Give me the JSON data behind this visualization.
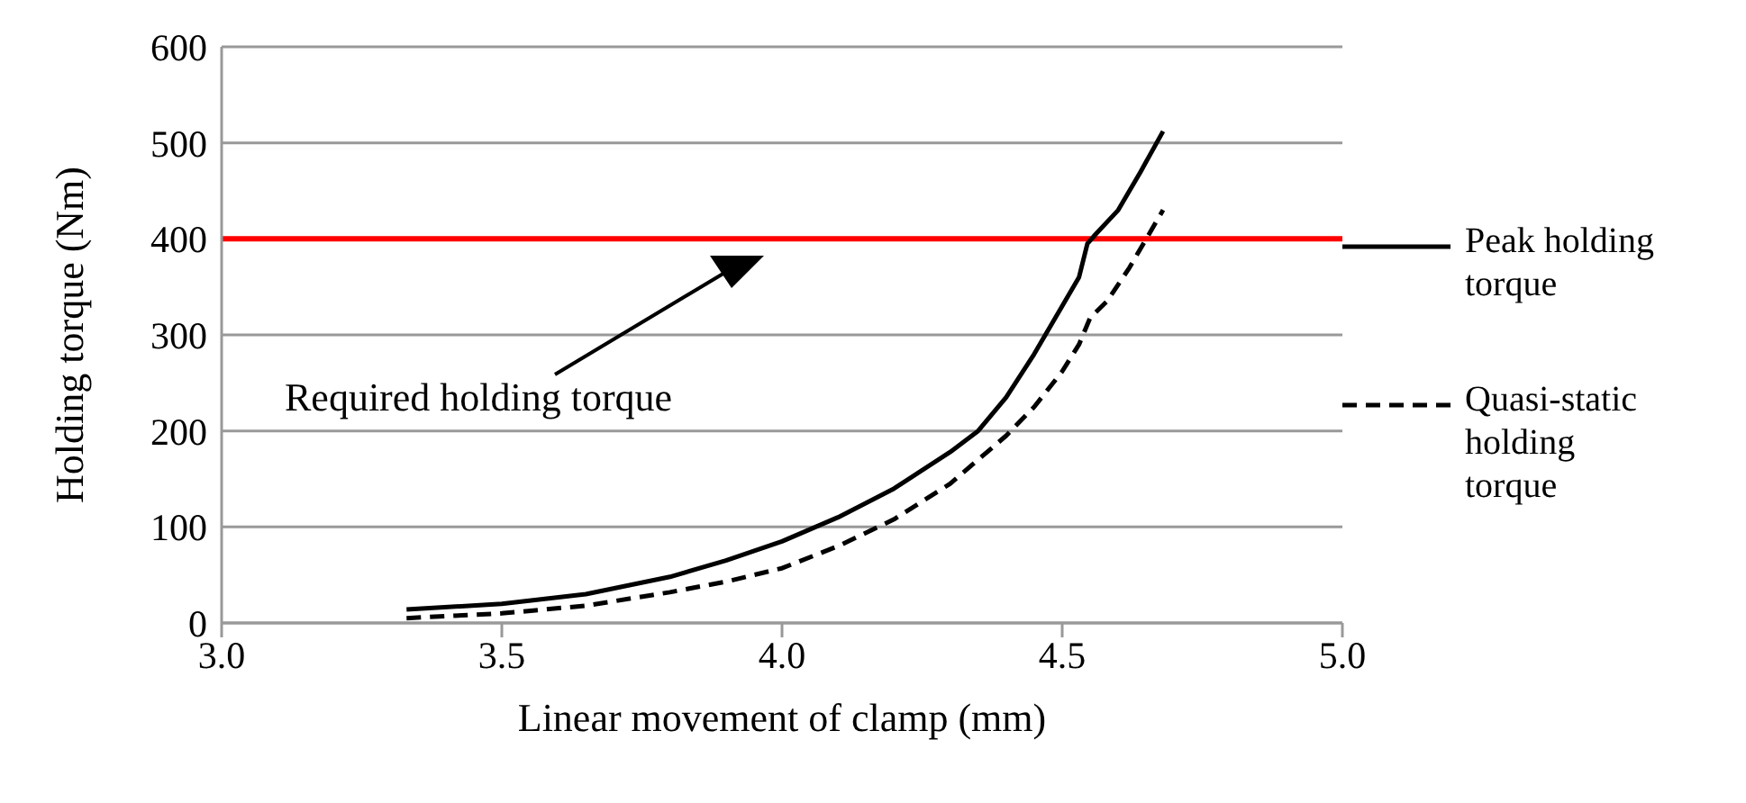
{
  "chart_data": {
    "type": "line",
    "xlabel": "Linear movement of clamp (mm)",
    "ylabel": "Holding torque (Nm)",
    "xlim": [
      3.0,
      5.0
    ],
    "xticks": [
      {
        "value": 3,
        "label": "3.0"
      },
      {
        "value": 3.5,
        "label": "3.5"
      },
      {
        "value": 4,
        "label": "4.0"
      },
      {
        "value": 4.5,
        "label": "4.5"
      },
      {
        "value": 5,
        "label": "5.0"
      }
    ],
    "ylim": [
      0,
      600
    ],
    "yticks": [
      0,
      100,
      200,
      300,
      400,
      500,
      600
    ],
    "grid": "y",
    "legend": "right",
    "marker": "none",
    "series": [
      {
        "name": "Peak holding torque",
        "color": "#000000",
        "line_style": "solid",
        "x": [
          3.33,
          3.5,
          3.65,
          3.8,
          3.9,
          4.0,
          4.1,
          4.2,
          4.3,
          4.35,
          4.4,
          4.45,
          4.5,
          4.53,
          4.545,
          4.56,
          4.6,
          4.64,
          4.68
        ],
        "values": [
          14,
          20,
          30,
          48,
          65,
          85,
          110,
          140,
          178,
          200,
          235,
          280,
          330,
          360,
          395,
          405,
          430,
          470,
          512
        ]
      },
      {
        "name": "Quasi-static holding torque",
        "color": "#000000",
        "line_style": "dashed",
        "x": [
          3.33,
          3.5,
          3.65,
          3.8,
          3.9,
          4.0,
          4.1,
          4.2,
          4.3,
          4.4,
          4.45,
          4.5,
          4.53,
          4.55,
          4.58,
          4.62,
          4.65,
          4.68
        ],
        "values": [
          5,
          10,
          18,
          32,
          43,
          57,
          80,
          108,
          145,
          195,
          225,
          262,
          290,
          318,
          335,
          370,
          400,
          430
        ]
      }
    ],
    "ref_lines": [
      {
        "axis": "y",
        "value": 400,
        "color": "#ff0000"
      }
    ],
    "annotations": [
      "Required holding torque"
    ]
  }
}
